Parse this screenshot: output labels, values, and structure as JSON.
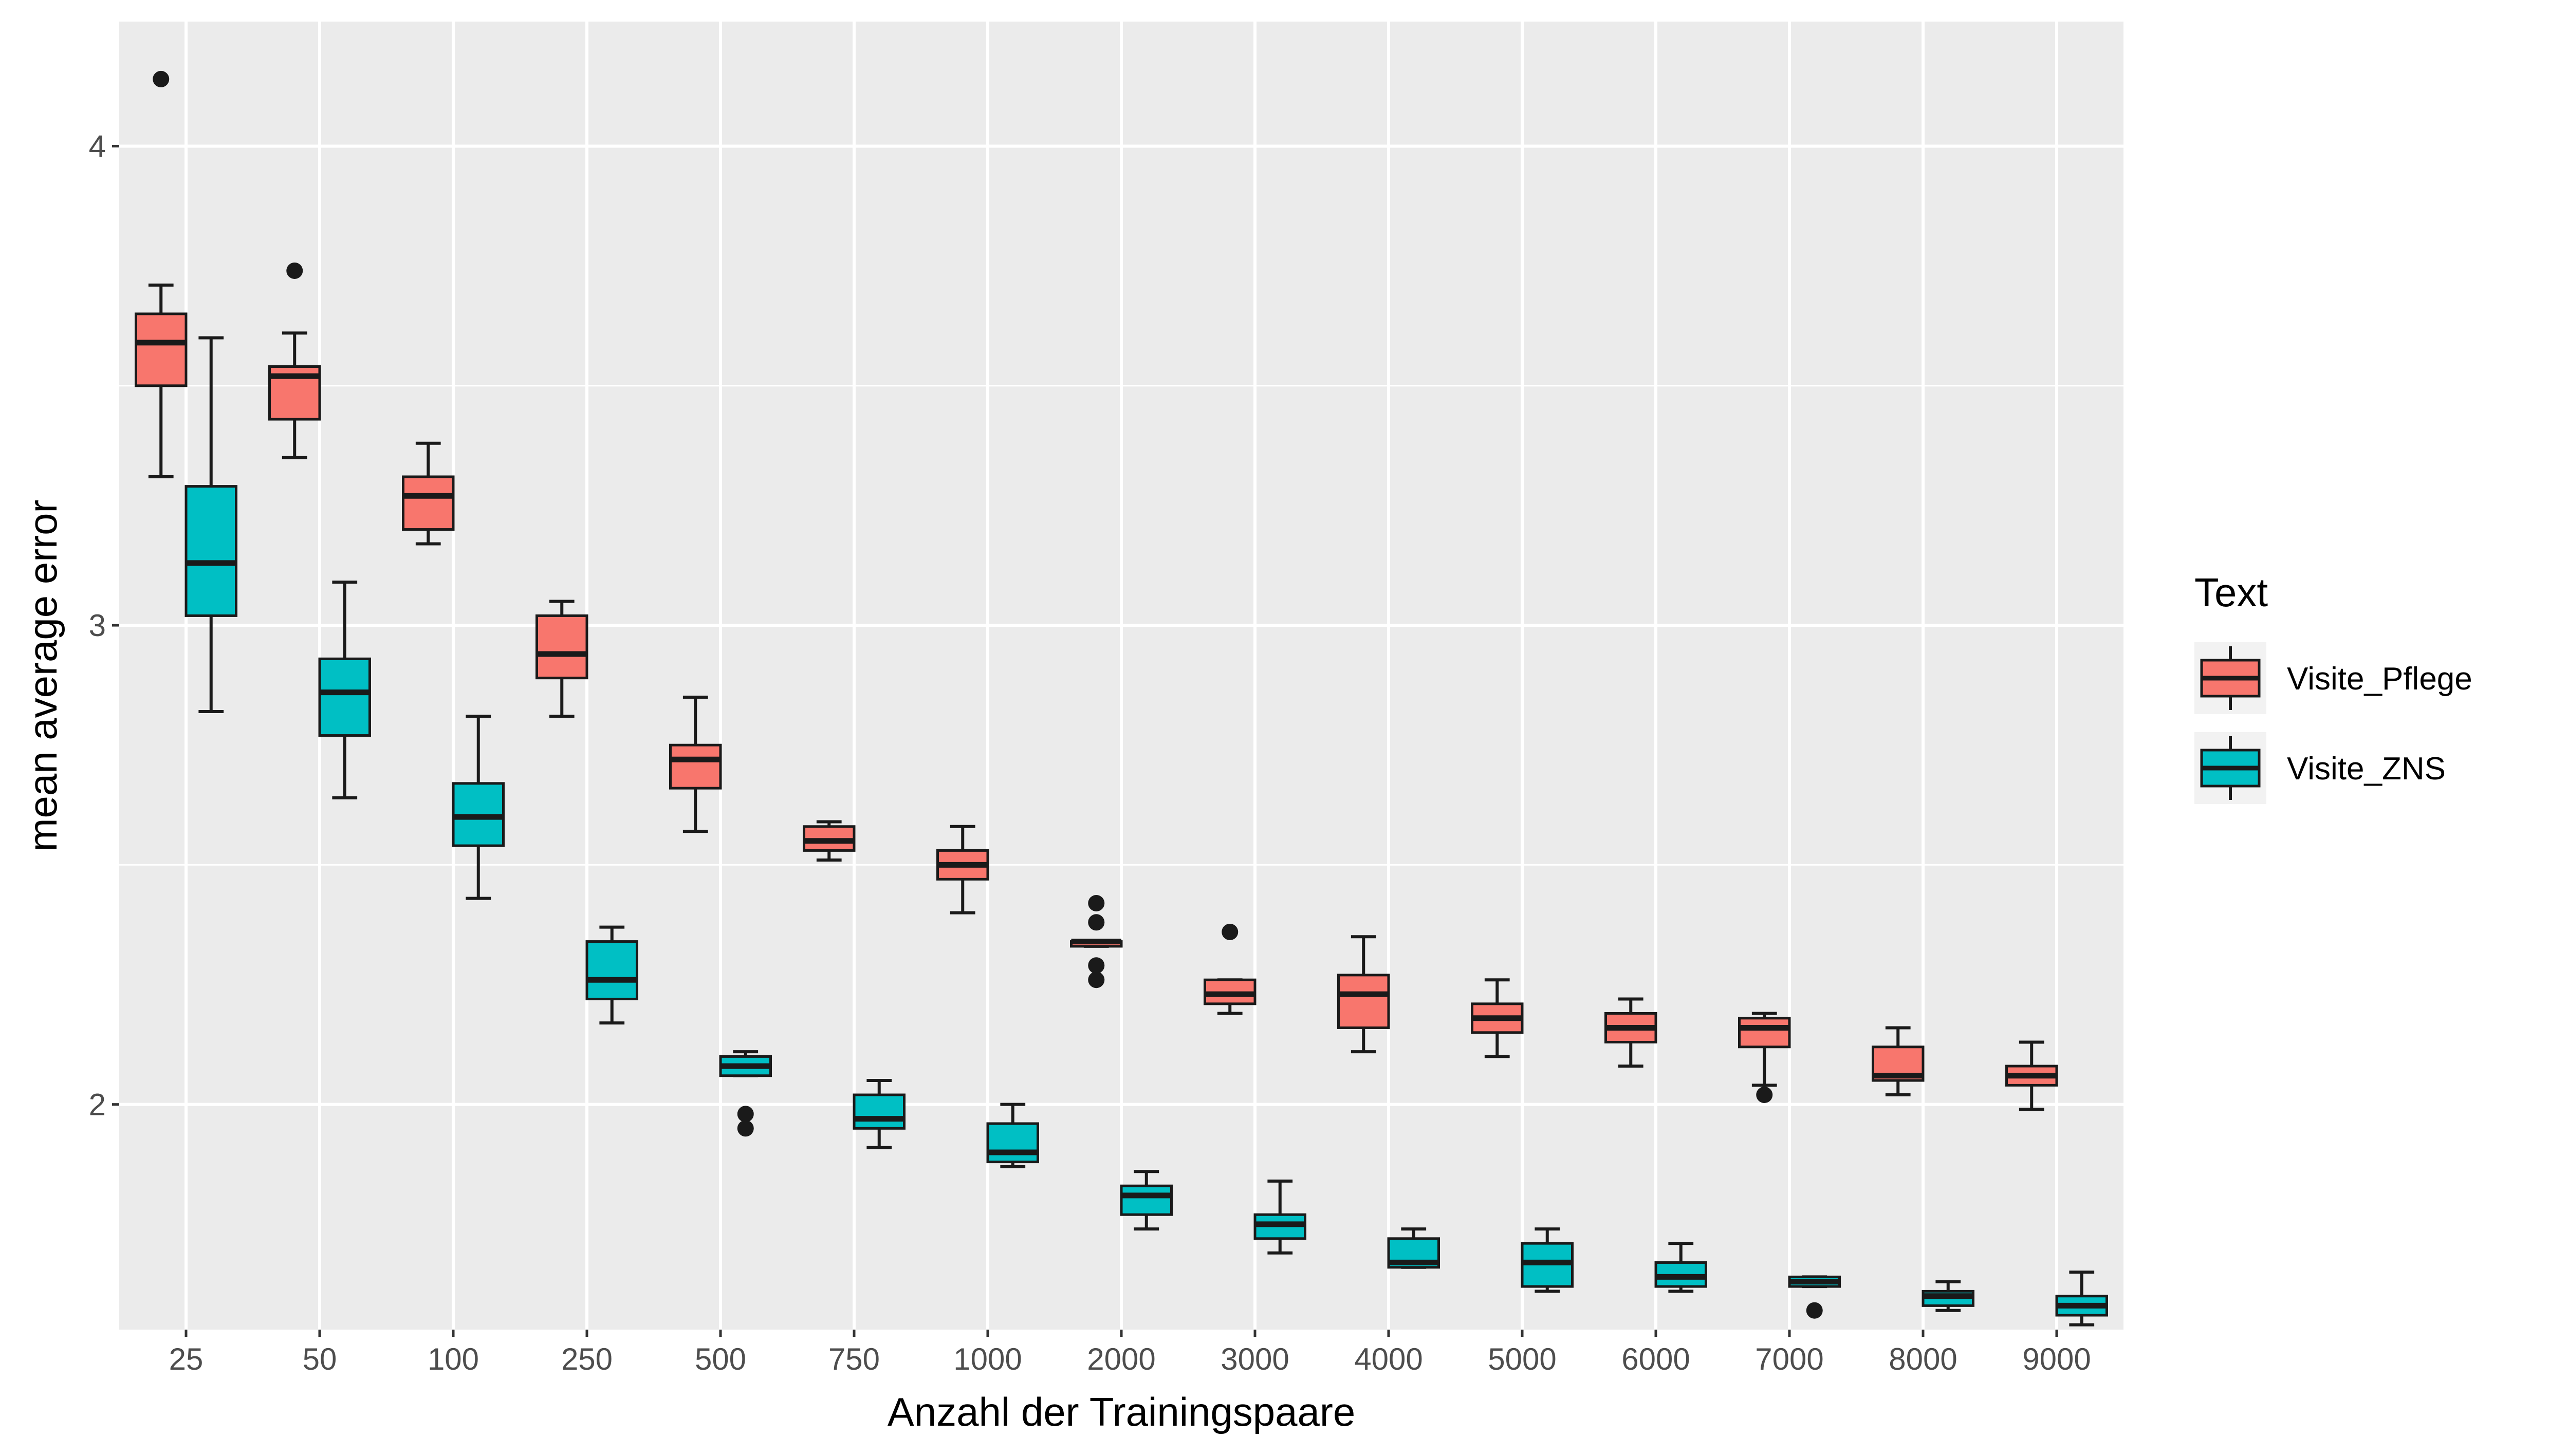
{
  "chart_data": {
    "type": "boxplot",
    "title": "",
    "xlabel": "Anzahl der Trainingspaare",
    "ylabel": "mean average error",
    "ylim": [
      1.53,
      4.26
    ],
    "yticks": [
      2,
      3,
      4
    ],
    "grid": true,
    "legend": {
      "title": "Text",
      "placement": "right"
    },
    "categories": [
      "25",
      "50",
      "100",
      "250",
      "500",
      "750",
      "1000",
      "2000",
      "3000",
      "4000",
      "5000",
      "6000",
      "7000",
      "8000",
      "9000"
    ],
    "series": [
      {
        "name": "Visite_Pflege",
        "color": "#f8766d",
        "boxes": [
          {
            "lower": 3.31,
            "q1": 3.5,
            "median": 3.59,
            "q3": 3.65,
            "upper": 3.71,
            "outliers": [
              4.14
            ]
          },
          {
            "lower": 3.35,
            "q1": 3.43,
            "median": 3.52,
            "q3": 3.54,
            "upper": 3.61,
            "outliers": [
              3.74
            ]
          },
          {
            "lower": 3.17,
            "q1": 3.2,
            "median": 3.27,
            "q3": 3.31,
            "upper": 3.38,
            "outliers": []
          },
          {
            "lower": 2.81,
            "q1": 2.89,
            "median": 2.94,
            "q3": 3.02,
            "upper": 3.05,
            "outliers": []
          },
          {
            "lower": 2.57,
            "q1": 2.66,
            "median": 2.72,
            "q3": 2.75,
            "upper": 2.85,
            "outliers": []
          },
          {
            "lower": 2.51,
            "q1": 2.53,
            "median": 2.55,
            "q3": 2.58,
            "upper": 2.59,
            "outliers": []
          },
          {
            "lower": 2.4,
            "q1": 2.47,
            "median": 2.5,
            "q3": 2.53,
            "upper": 2.58,
            "outliers": []
          },
          {
            "lower": 2.33,
            "q1": 2.33,
            "median": 2.34,
            "q3": 2.34,
            "upper": 2.34,
            "outliers": [
              2.42,
              2.38,
              2.29,
              2.26
            ]
          },
          {
            "lower": 2.19,
            "q1": 2.21,
            "median": 2.23,
            "q3": 2.26,
            "upper": 2.26,
            "outliers": [
              2.36
            ]
          },
          {
            "lower": 2.11,
            "q1": 2.16,
            "median": 2.23,
            "q3": 2.27,
            "upper": 2.35,
            "outliers": []
          },
          {
            "lower": 2.1,
            "q1": 2.15,
            "median": 2.18,
            "q3": 2.21,
            "upper": 2.26,
            "outliers": []
          },
          {
            "lower": 2.08,
            "q1": 2.13,
            "median": 2.16,
            "q3": 2.19,
            "upper": 2.22,
            "outliers": []
          },
          {
            "lower": 2.04,
            "q1": 2.12,
            "median": 2.16,
            "q3": 2.18,
            "upper": 2.19,
            "outliers": [
              2.02
            ]
          },
          {
            "lower": 2.02,
            "q1": 2.05,
            "median": 2.06,
            "q3": 2.12,
            "upper": 2.16,
            "outliers": []
          },
          {
            "lower": 1.99,
            "q1": 2.04,
            "median": 2.06,
            "q3": 2.08,
            "upper": 2.13,
            "outliers": []
          }
        ]
      },
      {
        "name": "Visite_ZNS",
        "color": "#00bfc4",
        "boxes": [
          {
            "lower": 2.82,
            "q1": 3.02,
            "median": 3.13,
            "q3": 3.29,
            "upper": 3.6,
            "outliers": []
          },
          {
            "lower": 2.64,
            "q1": 2.77,
            "median": 2.86,
            "q3": 2.93,
            "upper": 3.09,
            "outliers": []
          },
          {
            "lower": 2.43,
            "q1": 2.54,
            "median": 2.6,
            "q3": 2.67,
            "upper": 2.81,
            "outliers": []
          },
          {
            "lower": 2.17,
            "q1": 2.22,
            "median": 2.26,
            "q3": 2.34,
            "upper": 2.37,
            "outliers": []
          },
          {
            "lower": 2.06,
            "q1": 2.06,
            "median": 2.08,
            "q3": 2.1,
            "upper": 2.11,
            "outliers": [
              1.98,
              1.95
            ]
          },
          {
            "lower": 1.91,
            "q1": 1.95,
            "median": 1.97,
            "q3": 2.02,
            "upper": 2.05,
            "outliers": []
          },
          {
            "lower": 1.87,
            "q1": 1.88,
            "median": 1.9,
            "q3": 1.96,
            "upper": 2.0,
            "outliers": []
          },
          {
            "lower": 1.74,
            "q1": 1.77,
            "median": 1.81,
            "q3": 1.83,
            "upper": 1.86,
            "outliers": []
          },
          {
            "lower": 1.69,
            "q1": 1.72,
            "median": 1.75,
            "q3": 1.77,
            "upper": 1.84,
            "outliers": []
          },
          {
            "lower": 1.66,
            "q1": 1.66,
            "median": 1.67,
            "q3": 1.72,
            "upper": 1.74,
            "outliers": []
          },
          {
            "lower": 1.61,
            "q1": 1.62,
            "median": 1.67,
            "q3": 1.71,
            "upper": 1.74,
            "outliers": []
          },
          {
            "lower": 1.61,
            "q1": 1.62,
            "median": 1.64,
            "q3": 1.67,
            "upper": 1.71,
            "outliers": []
          },
          {
            "lower": 1.62,
            "q1": 1.62,
            "median": 1.63,
            "q3": 1.64,
            "upper": 1.64,
            "outliers": [
              1.57
            ]
          },
          {
            "lower": 1.57,
            "q1": 1.58,
            "median": 1.6,
            "q3": 1.61,
            "upper": 1.63,
            "outliers": []
          },
          {
            "lower": 1.54,
            "q1": 1.56,
            "median": 1.58,
            "q3": 1.6,
            "upper": 1.65,
            "outliers": []
          }
        ]
      }
    ]
  }
}
